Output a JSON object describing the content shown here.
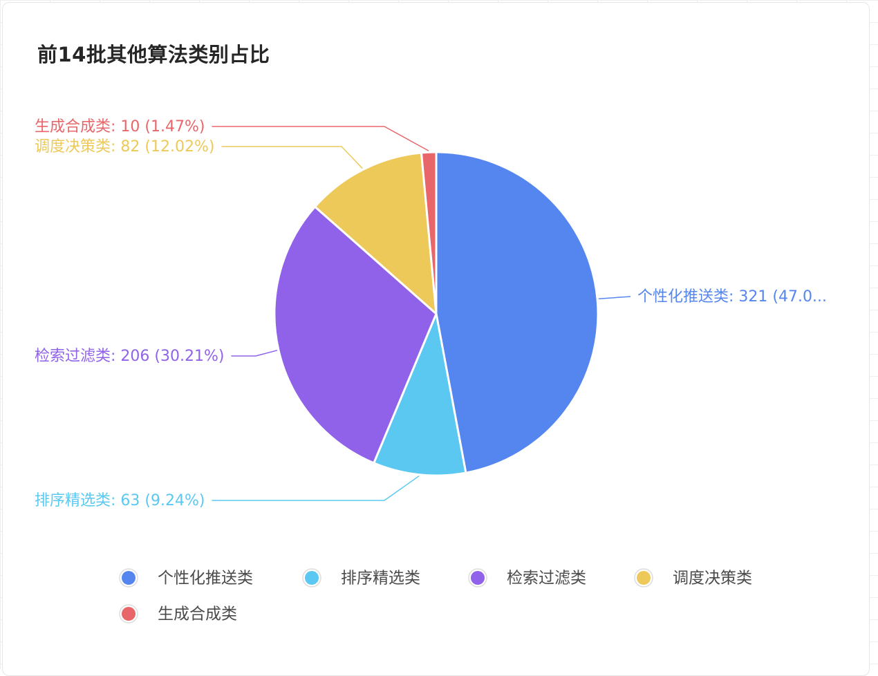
{
  "chart_data": {
    "type": "pie",
    "title": "前14批其他算法类别占比",
    "slices": [
      {
        "name": "个性化推送类",
        "value": 321,
        "percent": "47.07%",
        "color": "#5586f0",
        "label": "个性化推送类: 321 (47.0..."
      },
      {
        "name": "排序精选类",
        "value": 63,
        "percent": "9.24%",
        "color": "#5ac8f0",
        "label": "排序精选类: 63 (9.24%)"
      },
      {
        "name": "检索过滤类",
        "value": 206,
        "percent": "30.21%",
        "color": "#9062ea",
        "label": "检索过滤类: 206 (30.21%)"
      },
      {
        "name": "调度决策类",
        "value": 82,
        "percent": "12.02%",
        "color": "#ecc959",
        "label": "调度决策类: 82 (12.02%)"
      },
      {
        "name": "生成合成类",
        "value": 10,
        "percent": "1.47%",
        "color": "#e8666a",
        "label": "生成合成类: 10 (1.47%)"
      }
    ],
    "legend": {
      "placement": "bottom",
      "items": [
        "个性化推送类",
        "排序精选类",
        "检索过滤类",
        "调度决策类",
        "生成合成类"
      ]
    }
  }
}
